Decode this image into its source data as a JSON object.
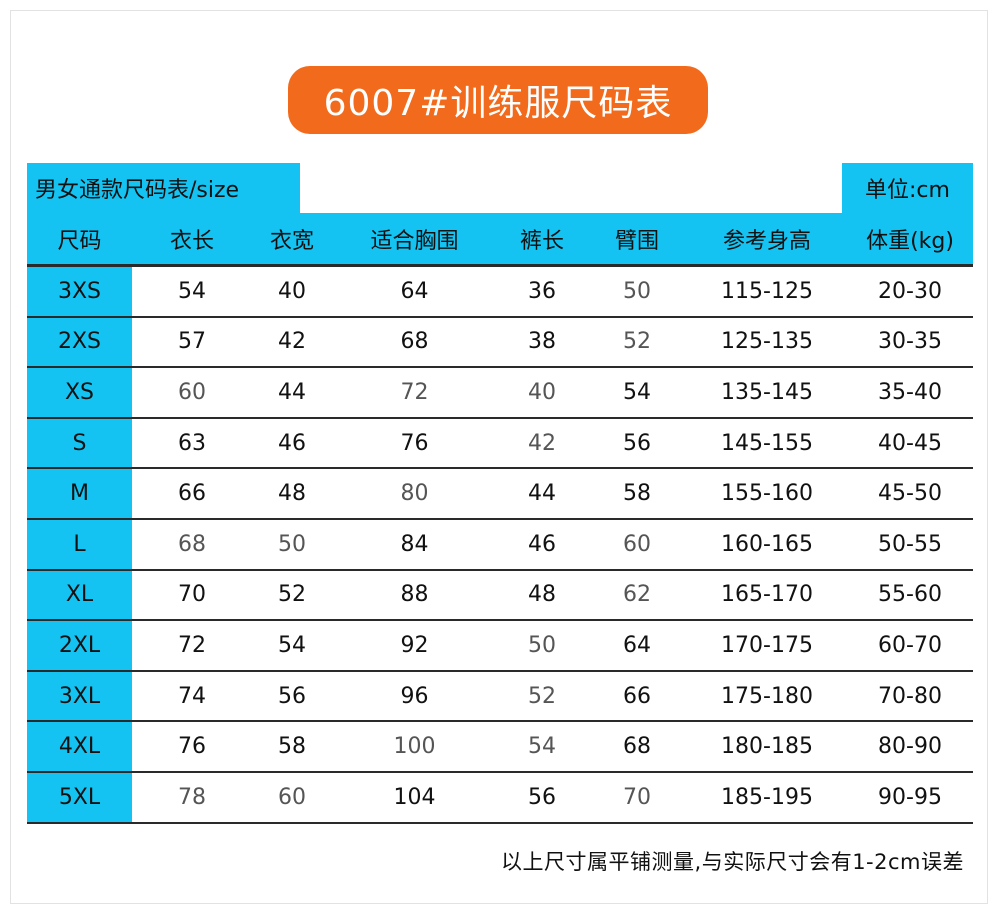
{
  "title": "6007#训练服尺码表",
  "header_left": "男女通款尺码表/size",
  "header_right": "单位:cm",
  "columns": [
    "尺码",
    "衣长",
    "衣宽",
    "适合胸围",
    "裤长",
    "臂围",
    "参考身高",
    "体重(kg)"
  ],
  "rows": [
    [
      "3XS",
      "54",
      "40",
      "64",
      "36",
      "50",
      "115-125",
      "20-30"
    ],
    [
      "2XS",
      "57",
      "42",
      "68",
      "38",
      "52",
      "125-135",
      "30-35"
    ],
    [
      "XS",
      "60",
      "44",
      "72",
      "40",
      "54",
      "135-145",
      "35-40"
    ],
    [
      "S",
      "63",
      "46",
      "76",
      "42",
      "56",
      "145-155",
      "40-45"
    ],
    [
      "M",
      "66",
      "48",
      "80",
      "44",
      "58",
      "155-160",
      "45-50"
    ],
    [
      "L",
      "68",
      "50",
      "84",
      "46",
      "60",
      "160-165",
      "50-55"
    ],
    [
      "XL",
      "70",
      "52",
      "88",
      "48",
      "62",
      "165-170",
      "55-60"
    ],
    [
      "2XL",
      "72",
      "54",
      "92",
      "50",
      "64",
      "170-175",
      "60-70"
    ],
    [
      "3XL",
      "74",
      "56",
      "96",
      "52",
      "66",
      "175-180",
      "70-80"
    ],
    [
      "4XL",
      "76",
      "58",
      "100",
      "54",
      "68",
      "180-185",
      "80-90"
    ],
    [
      "5XL",
      "78",
      "60",
      "104",
      "56",
      "70",
      "185-195",
      "90-95"
    ]
  ],
  "footnote": "以上尺寸属平铺测量,与实际尺寸会有1-2cm误差",
  "colors": {
    "title_bg": "#f26a1b",
    "accent": "#14c3f1"
  }
}
